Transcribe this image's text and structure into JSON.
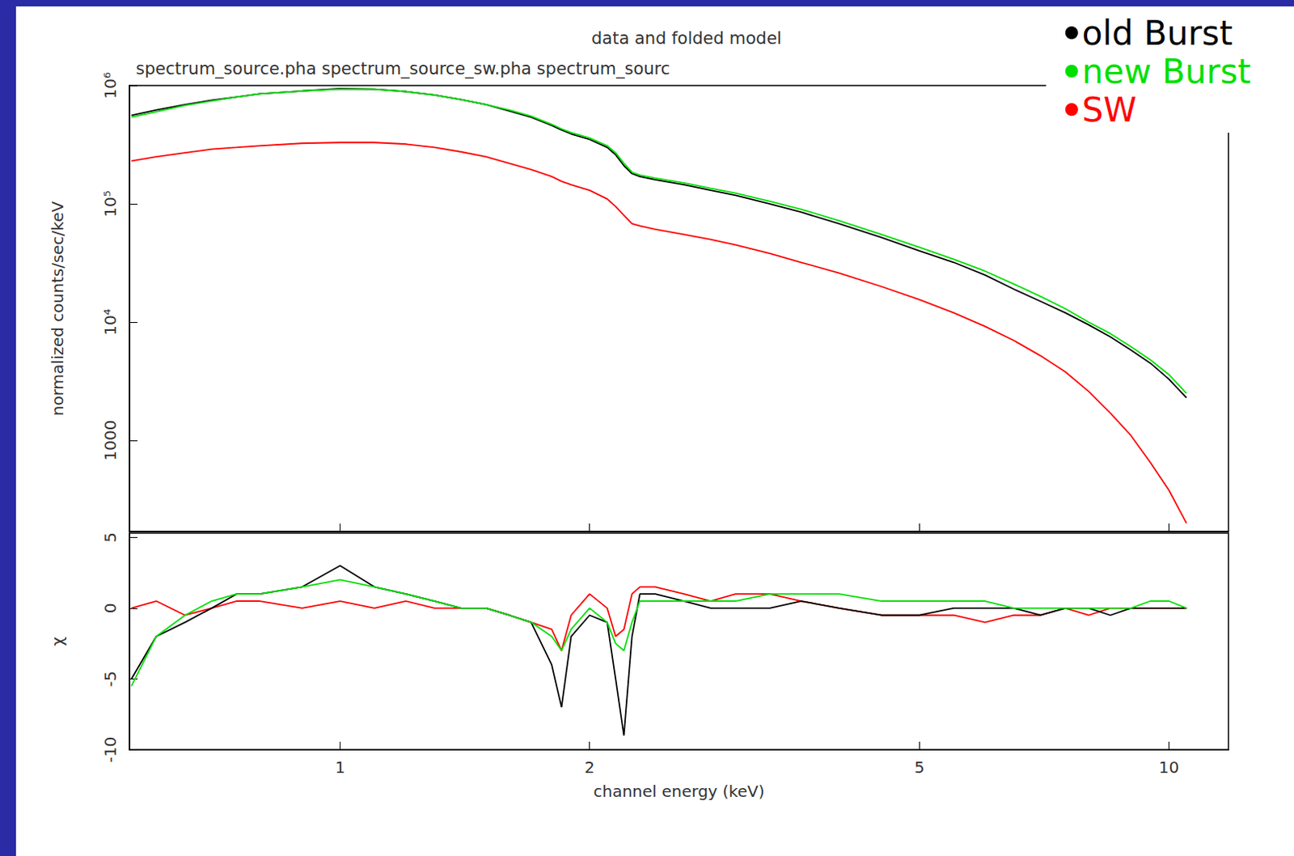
{
  "chart_data": [
    {
      "type": "line",
      "title": "data and folded model",
      "subtitle": "spectrum_source.pha spectrum_source_sw.pha spectrum_sourc",
      "y_label": "normalized counts/sec/keV",
      "log": true,
      "grid": false,
      "legend": "top-right",
      "tick_labels": "y",
      "x": [
        0.56,
        0.6,
        0.65,
        0.7,
        0.75,
        0.8,
        0.9,
        1.0,
        1.1,
        1.2,
        1.3,
        1.4,
        1.5,
        1.6,
        1.7,
        1.8,
        1.85,
        1.9,
        2.0,
        2.1,
        2.15,
        2.2,
        2.25,
        2.3,
        2.4,
        2.6,
        2.8,
        3.0,
        3.3,
        3.6,
        4.0,
        4.5,
        5.0,
        5.5,
        6.0,
        6.5,
        7.0,
        7.5,
        8.0,
        8.5,
        9.0,
        9.5,
        10.0,
        10.5
      ],
      "xlim": [
        0.557,
        11.8
      ],
      "xticks": [
        1,
        2,
        5,
        10
      ],
      "ylim": [
        170,
        1000000
      ],
      "yticks": [
        1000,
        {
          "value": 10000,
          "label": "10⁴"
        },
        {
          "value": 100000,
          "label": "10⁵"
        },
        {
          "value": 1000000,
          "label": "10⁶"
        }
      ],
      "series": [
        {
          "name": "old Burst",
          "color": "#000000",
          "values": [
            560000,
            620000,
            690000,
            750000,
            800000,
            850000,
            900000,
            940000,
            930000,
            890000,
            830000,
            760000,
            690000,
            610000,
            540000,
            460000,
            420000,
            390000,
            350000,
            300000,
            260000,
            210000,
            180000,
            170000,
            160000,
            145000,
            130000,
            118000,
            100000,
            85000,
            68000,
            52000,
            40000,
            32000,
            25000,
            19000,
            15000,
            12000,
            9500,
            7500,
            5800,
            4500,
            3300,
            2300
          ]
        },
        {
          "name": "new Burst",
          "color": "#00e000",
          "values": [
            540000,
            600000,
            680000,
            740000,
            800000,
            850000,
            900000,
            930000,
            930000,
            890000,
            830000,
            760000,
            690000,
            620000,
            550000,
            470000,
            430000,
            400000,
            360000,
            310000,
            270000,
            220000,
            185000,
            175000,
            165000,
            150000,
            135000,
            123000,
            105000,
            90000,
            72000,
            55000,
            43000,
            34000,
            27000,
            21000,
            16500,
            13000,
            10000,
            8000,
            6200,
            4800,
            3600,
            2500
          ]
        },
        {
          "name": "SW",
          "color": "#ff0000",
          "values": [
            230000,
            250000,
            270000,
            290000,
            300000,
            310000,
            325000,
            330000,
            330000,
            320000,
            300000,
            275000,
            250000,
            220000,
            195000,
            170000,
            155000,
            145000,
            130000,
            110000,
            95000,
            80000,
            68000,
            65000,
            61000,
            55000,
            50000,
            45000,
            38000,
            32000,
            26000,
            20000,
            15500,
            12000,
            9200,
            7000,
            5200,
            3800,
            2600,
            1700,
            1100,
            650,
            380,
            200
          ]
        }
      ]
    },
    {
      "type": "line",
      "x_label": "channel energy (keV)",
      "y_label": "χ",
      "log": "x",
      "grid": false,
      "x": [
        0.56,
        0.6,
        0.65,
        0.7,
        0.75,
        0.8,
        0.9,
        1.0,
        1.1,
        1.2,
        1.3,
        1.4,
        1.5,
        1.6,
        1.7,
        1.8,
        1.85,
        1.9,
        2.0,
        2.1,
        2.15,
        2.2,
        2.25,
        2.3,
        2.4,
        2.6,
        2.8,
        3.0,
        3.3,
        3.6,
        4.0,
        4.5,
        5.0,
        5.5,
        6.0,
        6.5,
        7.0,
        7.5,
        8.0,
        8.5,
        9.0,
        9.5,
        10.0,
        10.5
      ],
      "xlim": [
        0.557,
        11.8
      ],
      "xticks": [
        1,
        2,
        5,
        10
      ],
      "ylim": [
        -10,
        5.3
      ],
      "yticks": [
        -10,
        -5,
        0,
        5
      ],
      "series": [
        {
          "color": "#ff0000",
          "values": [
            0,
            0.5,
            -0.5,
            0,
            0.5,
            0.5,
            0,
            0.5,
            0,
            0.5,
            0,
            0,
            0,
            -0.5,
            -1,
            -1.5,
            -3,
            -0.5,
            1,
            0,
            -2,
            -1.5,
            1,
            1.5,
            1.5,
            1,
            0.5,
            1,
            1,
            0.5,
            0,
            -0.5,
            -0.5,
            -0.5,
            -1,
            -0.5,
            -0.5,
            0,
            -0.5,
            0,
            0,
            0,
            0,
            0
          ]
        },
        {
          "color": "#000000",
          "values": [
            -5,
            -2,
            -1,
            0,
            1,
            1,
            1.5,
            3,
            1.5,
            1,
            0.5,
            0,
            0,
            -0.5,
            -1,
            -4,
            -7,
            -2,
            -0.5,
            -1,
            -5,
            -9,
            -2,
            1,
            1,
            0.5,
            0,
            0,
            0,
            0.5,
            0,
            -0.5,
            -0.5,
            0,
            0,
            0,
            -0.5,
            0,
            0,
            -0.5,
            0,
            0,
            0,
            0
          ]
        },
        {
          "color": "#00e000",
          "values": [
            -5.5,
            -2,
            -0.5,
            0.5,
            1,
            1,
            1.5,
            2,
            1.5,
            1,
            0.5,
            0,
            0,
            -0.5,
            -1,
            -2,
            -3,
            -1.5,
            0,
            -1,
            -2.5,
            -3,
            -1,
            0.5,
            0.5,
            0.5,
            0.5,
            0.5,
            1,
            1,
            1,
            0.5,
            0.5,
            0.5,
            0.5,
            0,
            0,
            0,
            0,
            0,
            0,
            0.5,
            0.5,
            0
          ]
        }
      ]
    }
  ]
}
